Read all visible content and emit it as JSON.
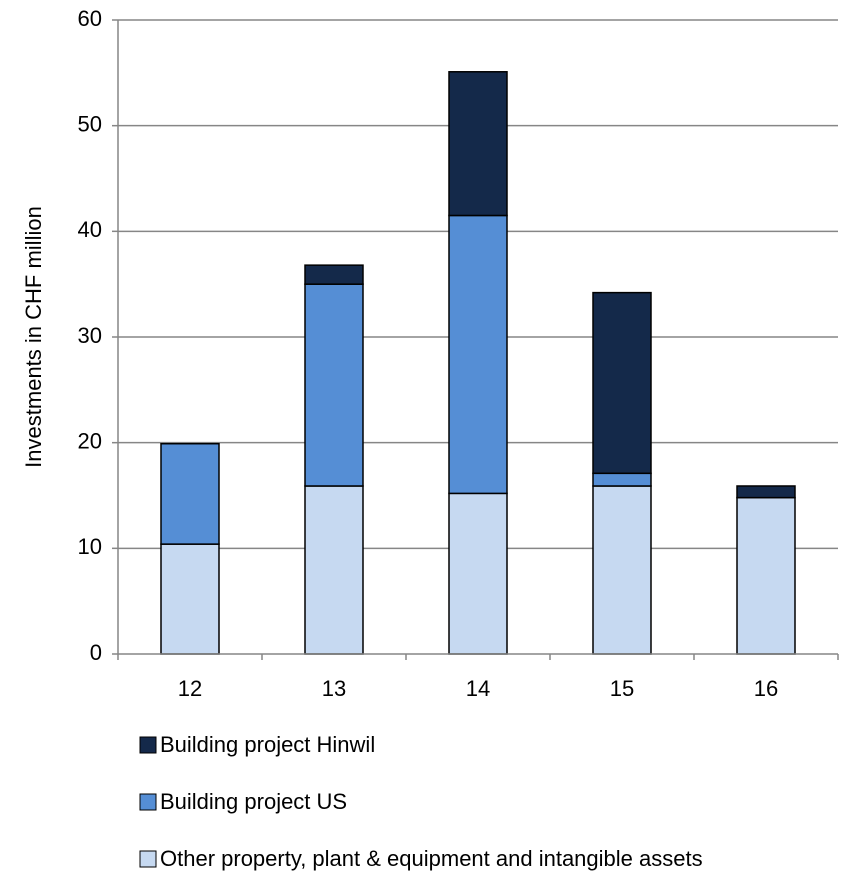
{
  "chart_data": {
    "type": "stacked_bar",
    "y_label": "Investments in CHF million",
    "categories": [
      "12",
      "13",
      "14",
      "15",
      "16"
    ],
    "series": [
      {
        "name": "Building project Hinwil",
        "color": "#14294a",
        "values": [
          0,
          1.8,
          13.6,
          17.1,
          1.1
        ]
      },
      {
        "name": "Building project US",
        "color": "#558ed5",
        "values": [
          9.5,
          19.1,
          26.3,
          1.2,
          0
        ]
      },
      {
        "name": "Other property, plant & equipment and intangible assets",
        "color": "#c6d9f1",
        "values": [
          10.4,
          15.9,
          15.2,
          15.9,
          14.8
        ]
      }
    ],
    "ylim": [
      0,
      60
    ],
    "yticks": [
      0,
      10,
      20,
      30,
      40,
      50,
      60
    ],
    "grid": true
  }
}
